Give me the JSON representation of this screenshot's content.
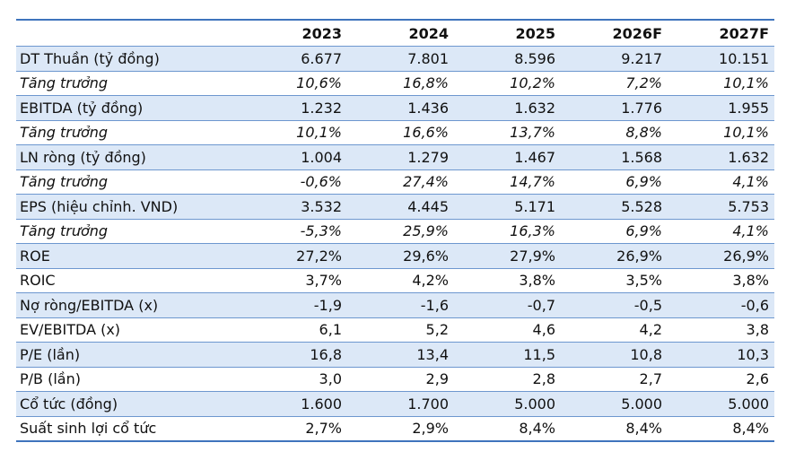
{
  "table": {
    "header": [
      "2023",
      "2024",
      "2025",
      "2026F",
      "2027F"
    ],
    "rows": [
      [
        "DT Thuần (tỷ đồng)",
        "6.677",
        "7.801",
        "8.596",
        "9.217",
        "10.151"
      ],
      [
        "Tăng trưởng",
        "10,6%",
        "16,8%",
        "10,2%",
        "7,2%",
        "10,1%"
      ],
      [
        "EBITDA (tỷ đồng)",
        "1.232",
        "1.436",
        "1.632",
        "1.776",
        "1.955"
      ],
      [
        "Tăng trưởng",
        "10,1%",
        "16,6%",
        "13,7%",
        "8,8%",
        "10,1%"
      ],
      [
        "LN ròng (tỷ đồng)",
        "1.004",
        "1.279",
        "1.467",
        "1.568",
        "1.632"
      ],
      [
        "Tăng trưởng",
        "-0,6%",
        "27,4%",
        "14,7%",
        "6,9%",
        "4,1%"
      ],
      [
        "EPS (hiệu chỉnh. VND)",
        "3.532",
        "4.445",
        "5.171",
        "5.528",
        "5.753"
      ],
      [
        "Tăng trưởng",
        "-5,3%",
        "25,9%",
        "16,3%",
        "6,9%",
        "4,1%"
      ],
      [
        "ROE",
        "27,2%",
        "29,6%",
        "27,9%",
        "26,9%",
        "26,9%"
      ],
      [
        "ROIC",
        "3,7%",
        "4,2%",
        "3,8%",
        "3,5%",
        "3,8%"
      ],
      [
        "Nợ ròng/EBITDA (x)",
        "-1,9",
        "-1,6",
        "-0,7",
        "-0,5",
        "-0,6"
      ],
      [
        "EV/EBITDA (x)",
        "6,1",
        "5,2",
        "4,6",
        "4,2",
        "3,8"
      ],
      [
        "P/E (lần)",
        "16,8",
        "13,4",
        "11,5",
        "10,8",
        "10,3"
      ],
      [
        "P/B (lần)",
        "3,0",
        "2,9",
        "2,8",
        "2,7",
        "2,6"
      ],
      [
        "Cổ tức (đồng)",
        "1.600",
        "1.700",
        "5.000",
        "5.000",
        "5.000"
      ],
      [
        "Suất sinh lợi cổ tức",
        "2,7%",
        "2,9%",
        "8,4%",
        "8,4%",
        "8,4%"
      ]
    ]
  }
}
